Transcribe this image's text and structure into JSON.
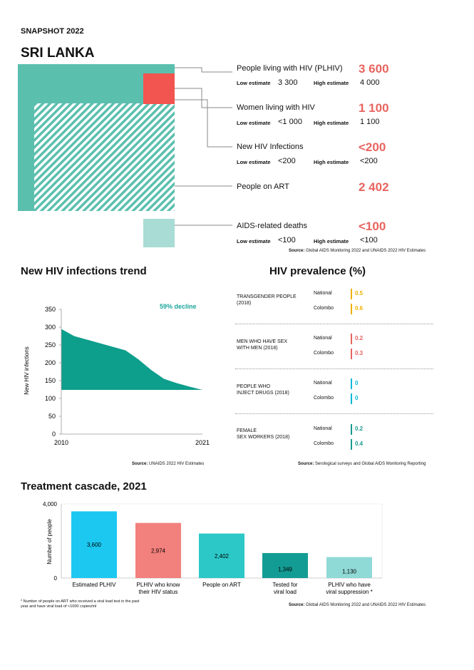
{
  "header": {
    "snapshot": "SNAPSHOT 2022",
    "country": "SRI LANKA"
  },
  "colors": {
    "teal": "#5bbfae",
    "red": "#f2544f",
    "lightteal": "#a8dcd4",
    "orange": "#f0b000",
    "salmon": "#e8645f",
    "cyan": "#00b0b0",
    "darkteal": "#1a8a80"
  },
  "summary": {
    "plhiv": {
      "label": "People living with HIV (PLHIV)",
      "value": "3 600",
      "low_label": "Low estimate",
      "low": "3 300",
      "high_label": "High estimate",
      "high": "4 000"
    },
    "women": {
      "label": "Women living with HIV",
      "value": "1 100",
      "low_label": "Low estimate",
      "low": "<1 000",
      "high_label": "High estimate",
      "high": "1 100"
    },
    "new": {
      "label": "New HIV Infections",
      "value": "<200",
      "low_label": "Low estimate",
      "low": "<200",
      "high_label": "High estimate",
      "high": "<200"
    },
    "art": {
      "label": "People on ART",
      "value": "2 402"
    },
    "deaths": {
      "label": "AIDS-related deaths",
      "value": "<100",
      "low_label": "Low estimate",
      "low": "<100",
      "high_label": "High estimate",
      "high": "<100"
    },
    "source_bold": "Source:",
    "source": "Global AIDS Monitoring 2022 and UNAIDS 2022 HIV Estimates"
  },
  "trend": {
    "title": "New HIV infections trend",
    "decline": "59% decline",
    "ylabel": "New HIV infections",
    "yticks": [
      "350",
      "300",
      "250",
      "200",
      "150",
      "100",
      "50",
      "0"
    ],
    "xticks": [
      "2010",
      "2021"
    ],
    "source_bold": "Source:",
    "source": "UNAIDS 2022 HIV Estimates"
  },
  "chart_data": [
    {
      "type": "area",
      "title": "New HIV infections trend",
      "ylabel": "New HIV infections",
      "x": [
        2010,
        2011,
        2012,
        2013,
        2014,
        2015,
        2016,
        2017,
        2018,
        2019,
        2020,
        2021
      ],
      "y": [
        295,
        275,
        265,
        255,
        245,
        235,
        210,
        180,
        155,
        143,
        133,
        124
      ],
      "ylim": [
        0,
        350
      ],
      "baseline": 124,
      "annotation": "59% decline"
    },
    {
      "type": "bar",
      "title": "Treatment cascade, 2021",
      "ylabel": "Number of people",
      "categories": [
        "Estimated PLHIV",
        "PLHIV who know their HIV status",
        "People on ART",
        "Tested for viral load",
        "PLHIV who have viral suppression *"
      ],
      "values": [
        3600,
        2974,
        2402,
        1349,
        1130
      ],
      "labels": [
        "3,600",
        "2,974",
        "2,402",
        "1,349",
        "1,130"
      ],
      "colors": [
        "#1cc8f0",
        "#f2807c",
        "#2cc8c8",
        "#139c94",
        "#8fd9d6"
      ],
      "ylim": [
        0,
        4000
      ]
    }
  ],
  "prevalence": {
    "title": "HIV prevalence (%)",
    "groups": [
      {
        "cat1": "TRANSGENDER PEOPLE",
        "cat2": "(2018)",
        "national": "0.5",
        "colombo": "0.6",
        "color": "#f0b000"
      },
      {
        "cat1": "MEN WHO HAVE SEX",
        "cat2": "WITH MEN (2018)",
        "national": "0.2",
        "colombo": "0.3",
        "color": "#e8645f"
      },
      {
        "cat1": "PEOPLE WHO",
        "cat2": "INJECT DRUGS (2018)",
        "national": "0",
        "colombo": "0",
        "color": "#00b8d8"
      },
      {
        "cat1": "FEMALE",
        "cat2": "SEX WORKERS (2018)",
        "national": "0.2",
        "colombo": "0.4",
        "color": "#1a9a90"
      }
    ],
    "national_label": "National",
    "colombo_label": "Colombo",
    "source_bold": "Source:",
    "source": "Serological surveys and Global AIDS Monitoring Reporting"
  },
  "cascade": {
    "title": "Treatment cascade, 2021",
    "ylabel": "Number of people",
    "yticks": [
      "4,000",
      "0"
    ],
    "cat_lines": [
      [
        "Estimated PLHIV"
      ],
      [
        "PLHIV who know",
        "their HIV status"
      ],
      [
        "People on ART"
      ],
      [
        "Tested for",
        "viral load"
      ],
      [
        "PLHIV who have",
        "viral suppression *"
      ]
    ],
    "footnote1": "* Number of people on ART who received a viral load test in the past",
    "footnote2": "year and have viral load of <1000 copies/ml",
    "source_bold": "Source:",
    "source": "Global AIDS Monitoring 2022 and UNAIDS 2022 HIV Estimates"
  }
}
